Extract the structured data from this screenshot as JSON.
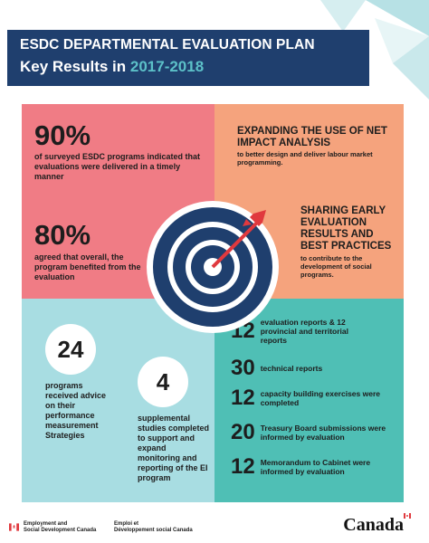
{
  "header": {
    "line1": "ESDC DEPARTMENTAL EVALUATION PLAN",
    "line2_prefix": "Key Results in ",
    "year": "2017-2018"
  },
  "top_left": {
    "stat1_value": "90%",
    "stat1_text": "of surveyed ESDC programs indicated that evaluations were delivered in a timely manner",
    "stat2_value": "80%",
    "stat2_text": "agreed that overall, the program benefited from the evaluation"
  },
  "top_right": {
    "item1_head": "EXPANDING THE USE OF NET IMPACT ANALYSIS",
    "item1_sub": "to better design and deliver labour market programming.",
    "item2_head": "SHARING EARLY EVALUATION RESULTS AND BEST PRACTICES",
    "item2_sub": "to contribute to the development of social programs."
  },
  "bottom_left": {
    "stat1_value": "24",
    "stat1_text": "programs received advice on their performance measurement Strategies",
    "stat2_value": "4",
    "stat2_text": "supplemental studies completed to support and expand monitoring and reporting of the EI program"
  },
  "bottom_right": {
    "rows": [
      {
        "value": "12",
        "text": "evaluation reports & 12 provincial and territorial reports"
      },
      {
        "value": "30",
        "text": "technical reports"
      },
      {
        "value": "12",
        "text": "capacity building exercises were completed"
      },
      {
        "value": "20",
        "text": "Treasury Board submissions were informed by evaluation"
      },
      {
        "value": "12",
        "text": "Memorandum to Cabinet were informed by evaluation"
      }
    ]
  },
  "footer": {
    "en_line1": "Employment and",
    "en_line2": "Social Development Canada",
    "fr_line1": "Emploi et",
    "fr_line2": "Développement social Canada",
    "wordmark": "Canada"
  },
  "colors": {
    "navy": "#1f3f6e",
    "coral": "#f07c85",
    "peach": "#f5a37d",
    "light_teal": "#a8dde2",
    "teal": "#4fbfb5",
    "red": "#e0393e"
  }
}
